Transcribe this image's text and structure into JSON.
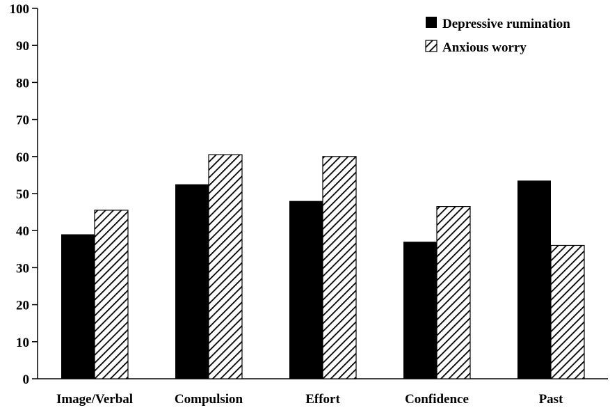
{
  "chart_data": {
    "type": "bar",
    "categories": [
      "Image/Verbal",
      "Compulsion",
      "Effort",
      "Confidence",
      "Past"
    ],
    "series": [
      {
        "name": "Depressive rumination",
        "values": [
          39,
          52.5,
          48,
          37,
          53.5
        ],
        "fill": "solid",
        "color": "#000000"
      },
      {
        "name": "Anxious worry",
        "values": [
          45.5,
          60.5,
          60,
          46.5,
          36
        ],
        "fill": "diagonal-hatch",
        "color": "#000000"
      }
    ],
    "ylim": [
      0,
      100
    ],
    "yticks": [
      "0",
      "10",
      "20",
      "30",
      "40",
      "50",
      "60",
      "70",
      "80",
      "90",
      "100"
    ],
    "title": "",
    "xlabel": "",
    "ylabel": "",
    "grid": false,
    "legend_position": "top-right"
  }
}
